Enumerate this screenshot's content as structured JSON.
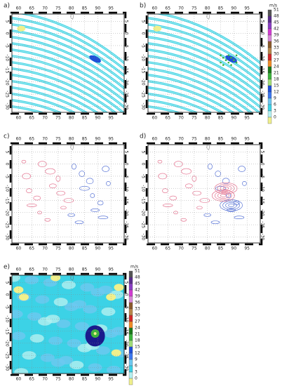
{
  "panels": [
    {
      "label": "a)"
    },
    {
      "label": "b)"
    },
    {
      "label": "c)"
    },
    {
      "label": "d)"
    },
    {
      "label": "e)"
    }
  ],
  "lon_ticks": [
    60,
    65,
    70,
    75,
    80,
    85,
    90,
    95
  ],
  "lat_ticks": [
    5,
    0,
    -5,
    -10,
    -15,
    -20,
    -25,
    -30
  ],
  "colorbar": {
    "unit": "m/s",
    "levels": [
      51,
      48,
      45,
      42,
      39,
      36,
      33,
      30,
      27,
      24,
      21,
      18,
      15,
      12,
      9,
      6,
      3,
      0
    ],
    "colors": [
      "#555555",
      "#5a2d8c",
      "#8a3fc4",
      "#d23cd2",
      "#d88ad8",
      "#8b5a2b",
      "#b8864b",
      "#d22a2a",
      "#f08c28",
      "#1a7a1a",
      "#3cb43c",
      "#a0dc78",
      "#1f4fd8",
      "#3c78f0",
      "#6ec8f0",
      "#3cd2e6",
      "#b4f0f0",
      "#f0f08c"
    ]
  }
}
